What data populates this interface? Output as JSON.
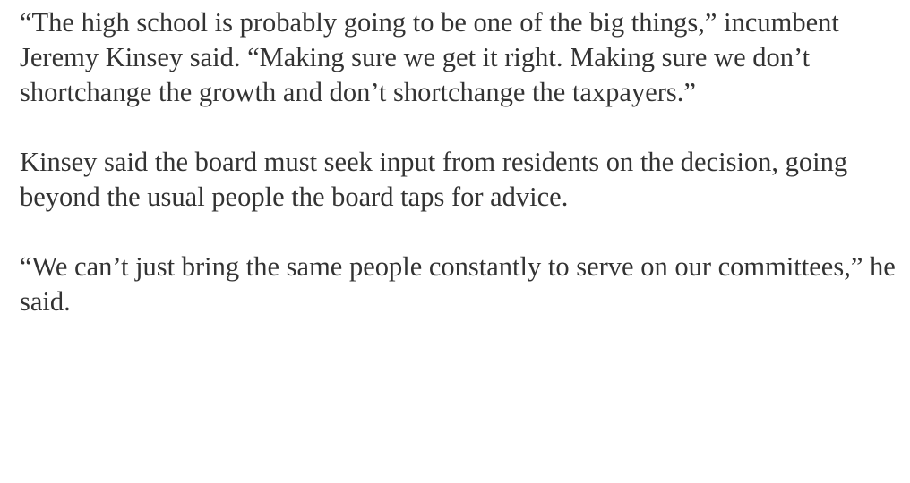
{
  "article": {
    "paragraphs": [
      "“The high school is probably going to be one of the big things,” incumbent Jeremy Kinsey said. “Making sure we get it right. Making sure we don’t shortchange the growth and don’t shortchange the taxpayers.”",
      "Kinsey said the board must seek input from residents on the decision, going beyond the usual people the board taps for advice.",
      "“We can’t just bring the same people constantly to serve on our committees,” he said."
    ]
  }
}
